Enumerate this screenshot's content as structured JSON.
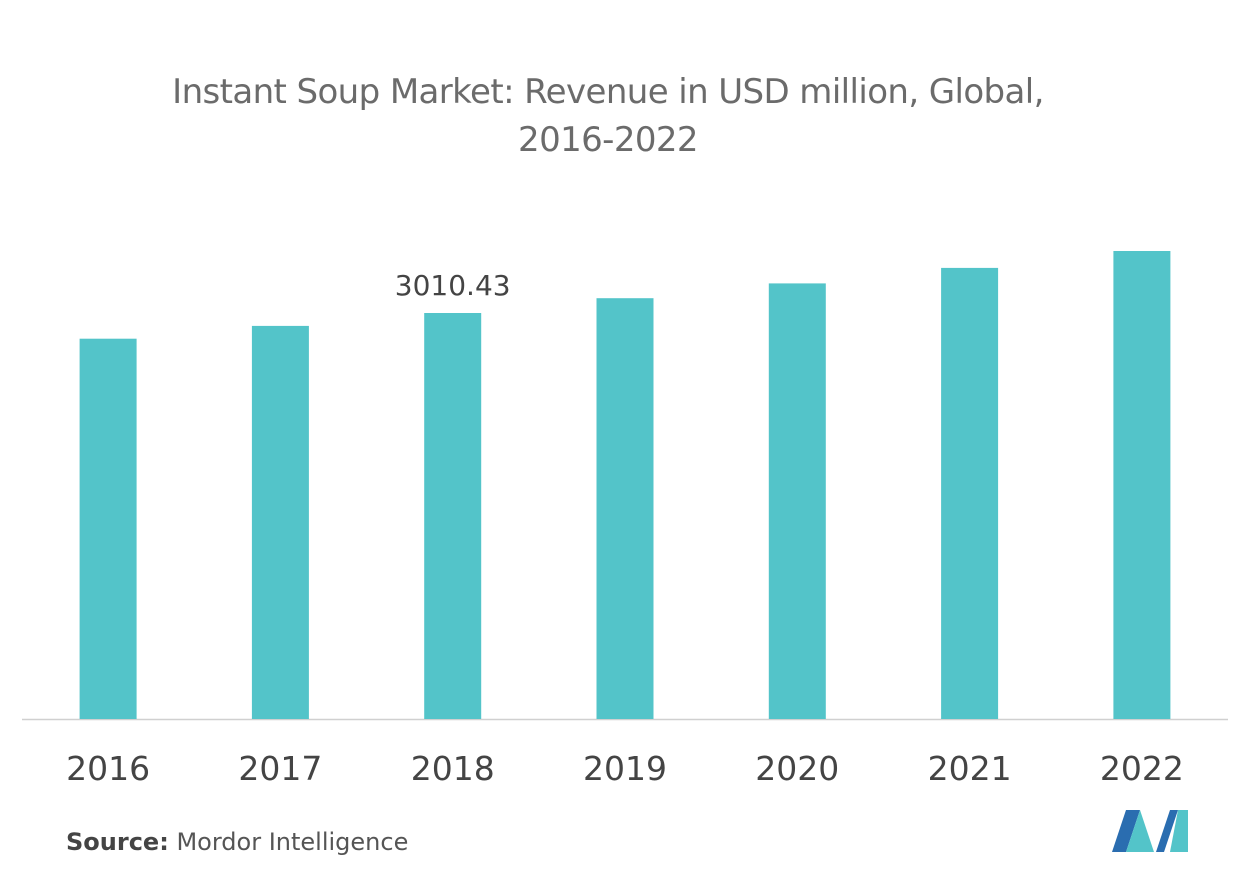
{
  "chart_data": {
    "type": "bar",
    "title": "Instant Soup Market: Revenue in USD million, Global, 2016-2022",
    "title_lines": [
      "Instant Soup Market: Revenue in USD million, Global,",
      "2016-2022"
    ],
    "categories": [
      "2016",
      "2017",
      "2018",
      "2019",
      "2020",
      "2021",
      "2022"
    ],
    "values": [
      2820,
      2915,
      3010.43,
      3120,
      3230,
      3345,
      3470
    ],
    "data_labels": [
      {
        "category": "2018",
        "text": "3010.43"
      }
    ],
    "xlabel": "",
    "ylabel": "",
    "ylim": [
      0,
      3700
    ],
    "grid": false,
    "y_axis_visible": false,
    "bar_color": "#53c4c9",
    "axis_color": "#d0d0d0"
  },
  "source": {
    "label": "Source:",
    "text": "Mordor Intelligence"
  },
  "logo": {
    "icon": "mordor-intelligence-logo-icon",
    "colors": [
      "#2a6db0",
      "#53c4c9"
    ]
  }
}
